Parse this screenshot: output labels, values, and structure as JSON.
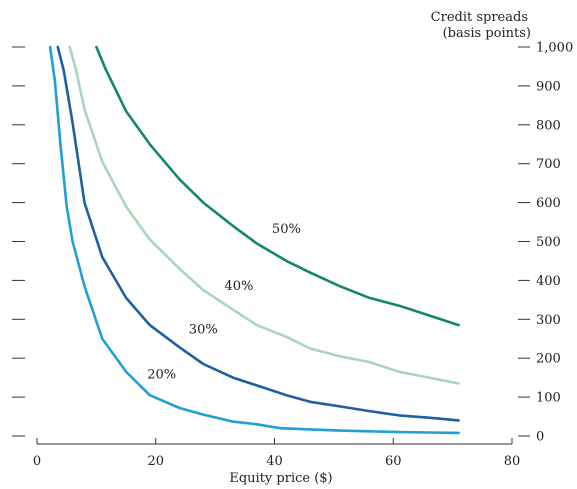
{
  "chart_data": {
    "type": "line",
    "xlabel": "Equity price ($)",
    "ylabel_lines": [
      "Credit spreads",
      "(basis points)"
    ],
    "xlim": [
      0,
      80
    ],
    "ylim": [
      0,
      1000
    ],
    "x_ticks": [
      0,
      20,
      40,
      60,
      80
    ],
    "x_tick_labels": [
      "0",
      "20",
      "40",
      "60",
      "80"
    ],
    "y_ticks": [
      0,
      100,
      200,
      300,
      400,
      500,
      600,
      700,
      800,
      900,
      1000
    ],
    "y_tick_labels": [
      "0",
      "100",
      "200",
      "300",
      "400",
      "500",
      "600",
      "700",
      "800",
      "900",
      "1,000"
    ],
    "grid": false,
    "series": [
      {
        "name": "20%",
        "color": "#1fa0d8",
        "x": [
          2.2,
          3,
          4,
          5,
          6,
          8,
          11,
          15,
          19,
          24,
          28,
          33,
          37,
          41,
          46,
          51,
          56,
          61,
          66,
          71
        ],
        "y": [
          1000,
          915,
          740,
          590,
          500,
          385,
          250,
          165,
          105,
          72,
          55,
          37,
          30,
          20,
          17,
          14,
          12,
          10,
          9,
          8
        ]
      },
      {
        "name": "30%",
        "color": "#1f5fa3",
        "x": [
          3.5,
          4.5,
          6,
          8,
          11,
          15,
          19,
          24,
          28,
          33,
          37,
          42,
          46,
          51,
          56,
          61,
          66,
          71
        ],
        "y": [
          1000,
          940,
          805,
          600,
          460,
          355,
          285,
          228,
          185,
          150,
          130,
          105,
          88,
          76,
          64,
          53,
          47,
          40
        ]
      },
      {
        "name": "40%",
        "color": "#a9d6b9",
        "x": [
          5.5,
          6.5,
          8,
          11,
          15,
          19,
          24,
          28,
          33,
          37,
          42,
          46,
          51,
          56,
          61,
          66,
          71
        ],
        "y": [
          1000,
          945,
          840,
          705,
          590,
          505,
          430,
          375,
          325,
          285,
          255,
          225,
          205,
          190,
          165,
          150,
          135
        ]
      },
      {
        "name": "50%",
        "color": "#138a5c",
        "x": [
          10,
          11.5,
          15,
          19,
          24,
          28,
          33,
          37,
          42,
          46,
          51,
          56,
          61,
          66,
          71
        ],
        "y": [
          1000,
          945,
          835,
          750,
          660,
          600,
          540,
          495,
          450,
          420,
          385,
          355,
          335,
          310,
          285
        ]
      }
    ],
    "series_labels": [
      {
        "text": "20%",
        "x": 21,
        "y": 148
      },
      {
        "text": "30%",
        "x": 28,
        "y": 263
      },
      {
        "text": "40%",
        "x": 34,
        "y": 375
      },
      {
        "text": "50%",
        "x": 42,
        "y": 522
      }
    ]
  }
}
